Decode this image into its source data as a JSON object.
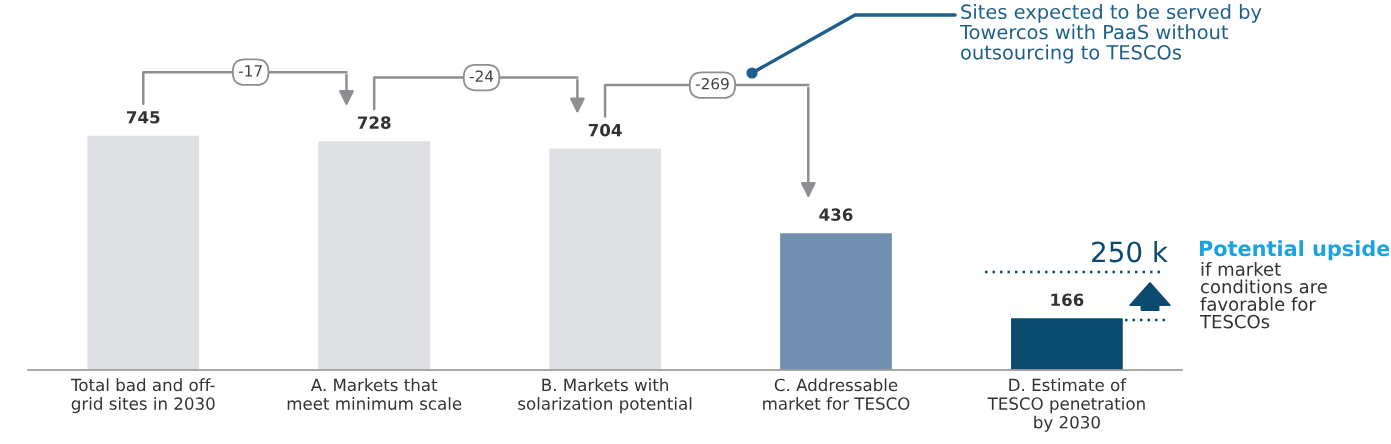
{
  "chart_data": {
    "type": "bar",
    "categories": [
      "Total bad and off-\ngrid sites in 2030",
      "A. Markets that\nmeet minimum scale",
      "B. Markets with\nsolarization potential",
      "C. Addressable\nmarket for TESCO",
      "D. Estimate of\nTESCO penetration\nby 2030"
    ],
    "values": [
      745,
      728,
      704,
      436,
      166
    ],
    "colors": [
      "#dfe0e3",
      "#dfe0e3",
      "#dfe0e3",
      "#7190b0",
      "#0b4a6f"
    ],
    "data_labels": true,
    "annotations": [
      "-17",
      "-24",
      "-269",
      "Sites expected to be served by\nTowercos with PaaS without\noutsourcing to TESCOs",
      "250 k",
      "Potential upside",
      "if market\nconditions are\nfavorable for\nTESCOs"
    ]
  }
}
